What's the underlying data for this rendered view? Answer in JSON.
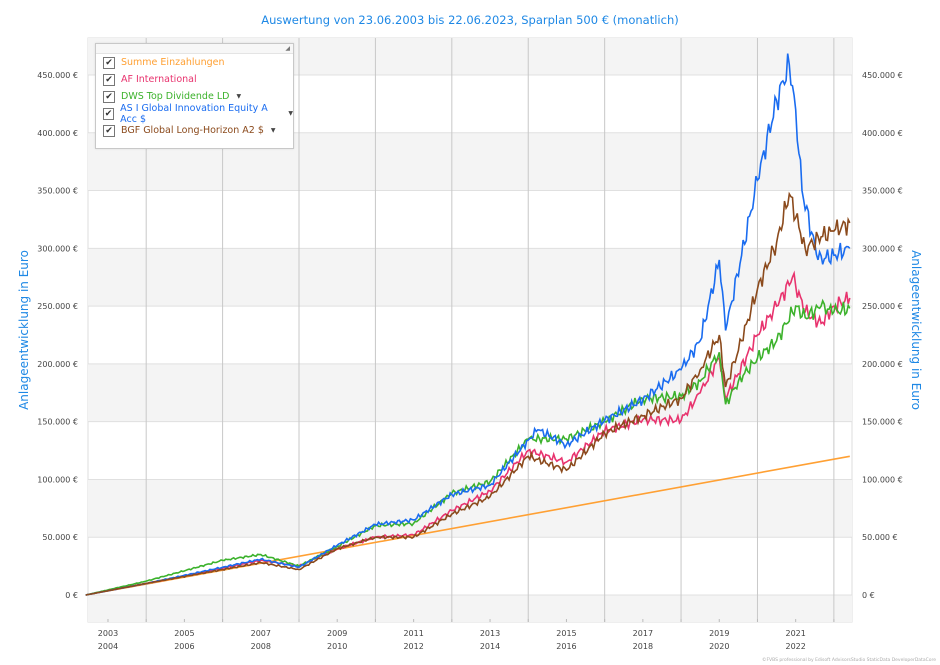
{
  "chart_data": {
    "type": "line",
    "title": "Auswertung von 23.06.2003 bis 22.06.2023, Sparplan 500 € (monatlich)",
    "ylabel": "Anlageentwicklung  in Euro",
    "ylabel_right": "Anlageentwicklung  in Euro",
    "ylim": [
      0,
      450000
    ],
    "yticks": [
      0,
      50000,
      100000,
      150000,
      200000,
      250000,
      300000,
      350000,
      400000,
      450000
    ],
    "ytick_labels": [
      "0 €",
      "50.000 €",
      "100.000 €",
      "150.000 €",
      "200.000 €",
      "250.000 €",
      "300.000 €",
      "350.000 €",
      "400.000 €",
      "450.000 €"
    ],
    "xlim": [
      "2003-06-23",
      "2023-06-22"
    ],
    "xtick_labels": [
      [
        "2003",
        "2004"
      ],
      [
        "2005",
        "2006"
      ],
      [
        "2007",
        "2008"
      ],
      [
        "2009",
        "2010"
      ],
      [
        "2011",
        "2012"
      ],
      [
        "2013",
        "2014"
      ],
      [
        "2015",
        "2016"
      ],
      [
        "2017",
        "2018"
      ],
      [
        "2019",
        "2020"
      ],
      [
        "2021",
        "2022"
      ]
    ],
    "grid": true,
    "legend_position": "top-left",
    "series": [
      {
        "name": "Summe Einzahlungen",
        "color": "#ffa033",
        "dropdown": false,
        "x": [
          "2003-06",
          "2023-06"
        ],
        "y": [
          0,
          120000
        ]
      },
      {
        "name": "AF International",
        "color": "#e8336e",
        "dropdown": false,
        "x": [
          "2003-06",
          "2005-01",
          "2007-01",
          "2008-01",
          "2009-01",
          "2010-01",
          "2011-01",
          "2012-01",
          "2013-01",
          "2014-01",
          "2015-01",
          "2016-01",
          "2017-01",
          "2018-01",
          "2019-01",
          "2019-07",
          "2020-01",
          "2020-03",
          "2021-01",
          "2021-07",
          "2021-12",
          "2022-04",
          "2022-09",
          "2023-01",
          "2023-06"
        ],
        "y": [
          0,
          10000,
          23000,
          30000,
          25000,
          40000,
          50000,
          52000,
          73000,
          90000,
          125000,
          115000,
          142000,
          152000,
          151000,
          175000,
          205000,
          170000,
          225000,
          250000,
          275000,
          245000,
          235000,
          250000,
          257000
        ]
      },
      {
        "name": "DWS Top Dividende LD",
        "color": "#3cb22c",
        "dropdown": true,
        "x": [
          "2003-06",
          "2005-01",
          "2007-01",
          "2008-01",
          "2009-01",
          "2010-01",
          "2011-01",
          "2012-01",
          "2013-01",
          "2014-01",
          "2015-01",
          "2016-01",
          "2017-01",
          "2018-01",
          "2019-01",
          "2019-07",
          "2020-01",
          "2020-03",
          "2020-07",
          "2021-01",
          "2021-07",
          "2022-01",
          "2022-04",
          "2022-09",
          "2023-01",
          "2023-06"
        ],
        "y": [
          0,
          12000,
          30000,
          35000,
          25000,
          42000,
          60000,
          62000,
          88000,
          98000,
          135000,
          135000,
          150000,
          170000,
          172000,
          185000,
          210000,
          165000,
          185000,
          205000,
          220000,
          250000,
          240000,
          250000,
          245000,
          248000
        ]
      },
      {
        "name": "AS I Global Innovation Equity A Acc $",
        "color": "#1a6cf0",
        "dropdown": true,
        "x": [
          "2003-06",
          "2005-01",
          "2007-01",
          "2008-01",
          "2009-01",
          "2010-01",
          "2011-01",
          "2012-01",
          "2013-01",
          "2014-01",
          "2015-01",
          "2015-04",
          "2016-01",
          "2017-01",
          "2018-01",
          "2019-01",
          "2019-07",
          "2020-01",
          "2020-03",
          "2021-01",
          "2021-07",
          "2021-11",
          "2022-01",
          "2022-03",
          "2022-08",
          "2023-01",
          "2023-06"
        ],
        "y": [
          0,
          10000,
          24000,
          31000,
          24000,
          43000,
          61000,
          65000,
          87000,
          95000,
          134000,
          143000,
          130000,
          151000,
          169000,
          195000,
          220000,
          290000,
          229000,
          359000,
          428000,
          459000,
          420000,
          350000,
          290000,
          294000,
          300000
        ]
      },
      {
        "name": "BGF Global Long-Horizon A2 $",
        "color": "#8b4a1c",
        "dropdown": true,
        "x": [
          "2003-06",
          "2005-01",
          "2007-01",
          "2008-01",
          "2009-01",
          "2010-01",
          "2011-01",
          "2012-01",
          "2013-01",
          "2014-01",
          "2015-01",
          "2016-01",
          "2017-01",
          "2018-01",
          "2019-01",
          "2019-07",
          "2020-01",
          "2020-03",
          "2020-08",
          "2021-01",
          "2021-07",
          "2021-11",
          "2022-04",
          "2022-09",
          "2023-01",
          "2023-06"
        ],
        "y": [
          0,
          10000,
          22000,
          28000,
          22000,
          40000,
          50000,
          50000,
          70000,
          85000,
          120000,
          108000,
          140000,
          155000,
          170000,
          195000,
          225000,
          180000,
          220000,
          265000,
          305000,
          347000,
          300000,
          310000,
          315000,
          322000
        ]
      }
    ]
  },
  "footer": "©FVBS professional by Edisoft AdvisorsStudio StaticData DeveloperDataCore"
}
